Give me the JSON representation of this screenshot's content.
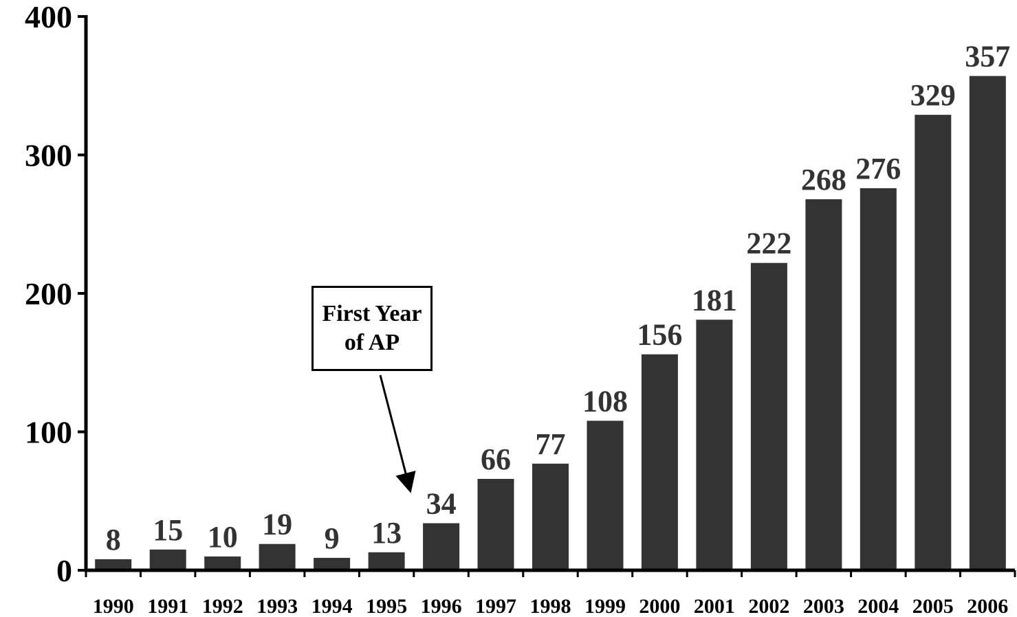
{
  "chart_data": {
    "type": "bar",
    "categories": [
      "1990",
      "1991",
      "1992",
      "1993",
      "1994",
      "1995",
      "1996",
      "1997",
      "1998",
      "1999",
      "2000",
      "2001",
      "2002",
      "2003",
      "2004",
      "2005",
      "2006"
    ],
    "values": [
      8,
      15,
      10,
      19,
      9,
      13,
      34,
      66,
      77,
      108,
      156,
      181,
      222,
      268,
      276,
      329,
      357
    ],
    "data_labels": [
      "8",
      "15",
      "10",
      "19",
      "9",
      "13",
      "34",
      "66",
      "77",
      "108",
      "156",
      "181",
      "222",
      "268",
      "276",
      "329",
      "357"
    ],
    "ylim": [
      0,
      400
    ],
    "yticks": [
      "0",
      "100",
      "200",
      "300",
      "400"
    ],
    "grid": false,
    "bar_color": "#333333",
    "annotation": {
      "line1": "First Year",
      "line2": "of AP",
      "points_to": "1996"
    }
  }
}
